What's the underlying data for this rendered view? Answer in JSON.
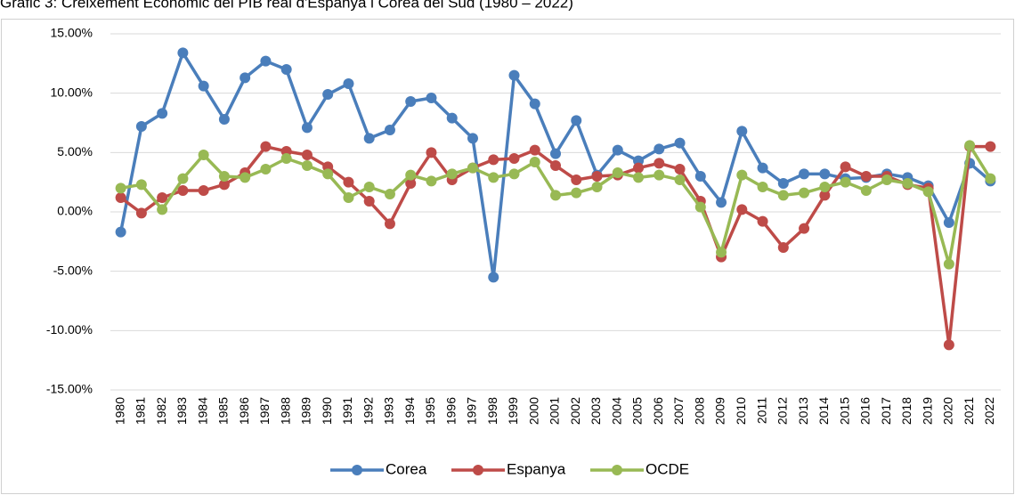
{
  "chart_data": {
    "type": "line",
    "title": "Gràfic 3: Creixement Econòmic del PIB real d'Espanya i Corea del Sud (1980 – 2022)",
    "categories": [
      "1980",
      "1981",
      "1982",
      "1983",
      "1984",
      "1985",
      "1986",
      "1987",
      "1988",
      "1989",
      "1990",
      "1991",
      "1992",
      "1993",
      "1994",
      "1995",
      "1996",
      "1997",
      "1998",
      "1999",
      "2000",
      "2001",
      "2002",
      "2003",
      "2004",
      "2005",
      "2006",
      "2007",
      "2008",
      "2009",
      "2010",
      "2011",
      "2012",
      "2013",
      "2014",
      "2015",
      "2016",
      "2017",
      "2018",
      "2019",
      "2020",
      "2021",
      "2022"
    ],
    "series": [
      {
        "name": "Corea",
        "color": "#4a7ebb",
        "values": [
          -1.7,
          7.2,
          8.3,
          13.4,
          10.6,
          7.8,
          11.3,
          12.7,
          12.0,
          7.1,
          9.9,
          10.8,
          6.2,
          6.9,
          9.3,
          9.6,
          7.9,
          6.2,
          -5.5,
          11.5,
          9.1,
          4.9,
          7.7,
          3.1,
          5.2,
          4.3,
          5.3,
          5.8,
          3.0,
          0.8,
          6.8,
          3.7,
          2.4,
          3.2,
          3.2,
          2.8,
          2.9,
          3.2,
          2.9,
          2.2,
          -0.9,
          4.1,
          2.6
        ]
      },
      {
        "name": "Espanya",
        "color": "#be4b48",
        "values": [
          1.2,
          -0.1,
          1.2,
          1.8,
          1.8,
          2.3,
          3.3,
          5.5,
          5.1,
          4.8,
          3.8,
          2.5,
          0.9,
          -1.0,
          2.4,
          5.0,
          2.7,
          3.7,
          4.4,
          4.5,
          5.2,
          3.9,
          2.7,
          3.0,
          3.1,
          3.7,
          4.1,
          3.6,
          0.9,
          -3.8,
          0.2,
          -0.8,
          -3.0,
          -1.4,
          1.4,
          3.8,
          3.0,
          3.0,
          2.3,
          2.0,
          -11.2,
          5.5,
          5.5
        ]
      },
      {
        "name": "OCDE",
        "color": "#98b954",
        "values": [
          2.0,
          2.3,
          0.2,
          2.8,
          4.8,
          3.0,
          2.9,
          3.6,
          4.5,
          3.9,
          3.2,
          1.2,
          2.1,
          1.5,
          3.1,
          2.6,
          3.2,
          3.7,
          2.9,
          3.2,
          4.2,
          1.4,
          1.6,
          2.1,
          3.3,
          2.9,
          3.1,
          2.7,
          0.4,
          -3.4,
          3.1,
          2.1,
          1.4,
          1.6,
          2.1,
          2.5,
          1.8,
          2.7,
          2.4,
          1.7,
          -4.4,
          5.6,
          2.8
        ]
      }
    ],
    "ylim": [
      -15,
      15
    ],
    "yticks": [
      {
        "value": -15,
        "label": "-15.00%"
      },
      {
        "value": -10,
        "label": "-10.00%"
      },
      {
        "value": -5,
        "label": "-5.00%"
      },
      {
        "value": 0,
        "label": "0.00%"
      },
      {
        "value": 5,
        "label": "5.00%"
      },
      {
        "value": 10,
        "label": "10.00%"
      },
      {
        "value": 15,
        "label": "15.00%"
      }
    ],
    "grid": true,
    "legend": "bottom"
  }
}
